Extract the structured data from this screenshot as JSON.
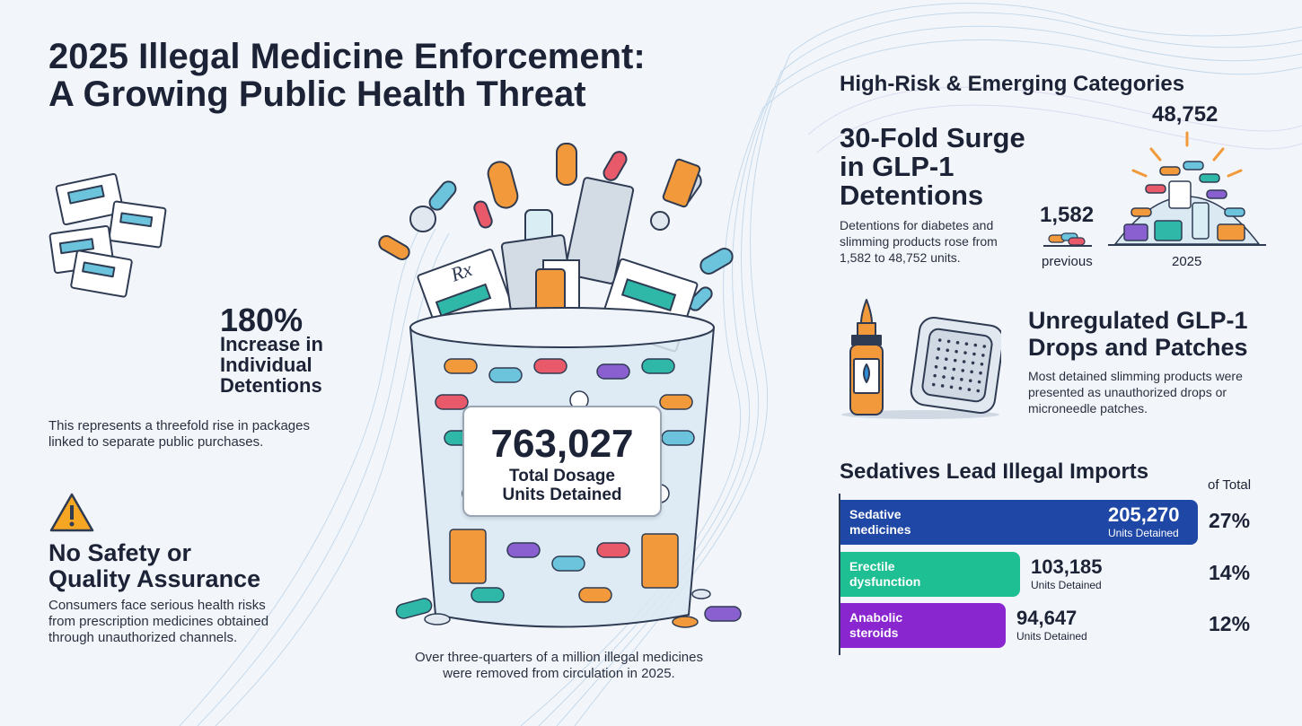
{
  "title_line1": "2025 Illegal Medicine Enforcement:",
  "title_line2": "A Growing Public Health Threat",
  "individual": {
    "percent": "180%",
    "label": "Increase in Individual Detentions",
    "description": "This represents a threefold rise in packages linked to separate public purchases."
  },
  "safety": {
    "heading_line1": "No Safety or",
    "heading_line2": "Quality Assurance",
    "description": "Consumers face serious health risks from prescription medicines obtained through unauthorized channels."
  },
  "jar": {
    "rx_mark": "Rx",
    "total": "763,027",
    "label_line1": "Total Dosage",
    "label_line2": "Units Detained",
    "caption_line1": "Over three-quarters of a million illegal medicines",
    "caption_line2": "were removed from circulation in 2025."
  },
  "high_risk": {
    "heading": "High-Risk & Emerging Categories",
    "surge_line1": "30-Fold Surge",
    "surge_line2": "in GLP-1",
    "surge_line3": "Detentions",
    "surge_desc_line1": "Detentions for diabetes and",
    "surge_desc_line2": "slimming products rose from",
    "surge_desc_line3": "1,582 to 48,752 units.",
    "previous_value": "1,582",
    "previous_label": "previous",
    "current_value": "48,752",
    "current_label": "2025"
  },
  "drops": {
    "heading_line1": "Unregulated GLP-1",
    "heading_line2": "Drops and Patches",
    "desc_line1": "Most detained slimming products were",
    "desc_line2": "presented as unauthorized drops or",
    "desc_line3": "microneedle patches."
  },
  "sedatives": {
    "heading": "Sedatives Lead Illegal Imports",
    "of_total": "of Total",
    "unit_label": "Units Detained",
    "bars": [
      {
        "line1": "Sedative",
        "line2": "medicines",
        "value": "205,270",
        "units": 205270,
        "percent": "27%",
        "color": "#1f47a6"
      },
      {
        "line1": "Erectile",
        "line2": "dysfunction",
        "value": "103,185",
        "units": 103185,
        "percent": "14%",
        "color": "#1fbf94"
      },
      {
        "line1": "Anabolic",
        "line2": "steroids",
        "value": "94,647",
        "units": 94647,
        "percent": "12%",
        "color": "#8a26cf"
      }
    ]
  }
}
